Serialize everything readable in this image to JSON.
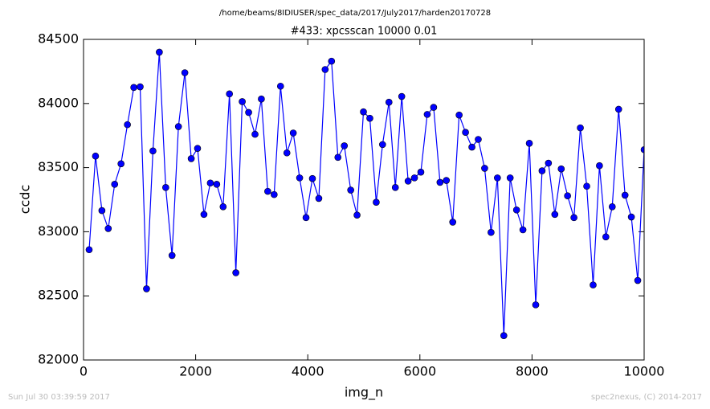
{
  "chart_data": {
    "type": "line",
    "suptitle": "/home/beams/8IDIUSER/spec_data/2017/July2017/harden20170728",
    "title": "#433: xpcsscan 10000 0.01",
    "xlabel": "img_n",
    "ylabel": "ccdc",
    "footer_left": "Sun Jul 30 03:39:59 2017",
    "footer_right": "spec2nexus, (C) 2014-2017",
    "xlim": [
      0,
      10000
    ],
    "xticks": [
      0,
      2000,
      4000,
      6000,
      8000,
      10000
    ],
    "ylim": [
      82000,
      84500
    ],
    "yticks": [
      82000,
      82500,
      83000,
      83500,
      84000,
      84500
    ],
    "grid": false,
    "series": [
      {
        "color": "#0000ff",
        "x": [
          100,
          214,
          328,
          441,
          555,
          669,
          783,
          897,
          1010,
          1124,
          1238,
          1352,
          1466,
          1579,
          1693,
          1807,
          1921,
          2034,
          2148,
          2262,
          2376,
          2490,
          2603,
          2717,
          2831,
          2945,
          3059,
          3172,
          3286,
          3400,
          3514,
          3628,
          3741,
          3855,
          3969,
          4083,
          4197,
          4310,
          4424,
          4538,
          4652,
          4766,
          4879,
          4993,
          5107,
          5221,
          5334,
          5448,
          5562,
          5676,
          5790,
          5903,
          6017,
          6131,
          6245,
          6359,
          6472,
          6586,
          6700,
          6814,
          6928,
          7041,
          7155,
          7269,
          7383,
          7497,
          7610,
          7724,
          7838,
          7952,
          8066,
          8179,
          8293,
          8407,
          8521,
          8634,
          8748,
          8862,
          8976,
          9090,
          9203,
          9317,
          9431,
          9545,
          9659,
          9772,
          9886,
          10000
        ],
        "values": [
          82860,
          83590,
          83165,
          83025,
          83370,
          83530,
          83835,
          84125,
          84130,
          82555,
          83630,
          84400,
          83345,
          82815,
          83820,
          84240,
          83570,
          83650,
          83135,
          83380,
          83370,
          83195,
          84075,
          82680,
          84015,
          83930,
          83760,
          84035,
          83315,
          83290,
          84135,
          83615,
          83770,
          83420,
          83110,
          83415,
          83260,
          84265,
          84330,
          83580,
          83670,
          83325,
          83130,
          83935,
          83885,
          83230,
          83680,
          84010,
          83345,
          84055,
          83395,
          83420,
          83465,
          83915,
          83970,
          83385,
          83400,
          83075,
          83910,
          83775,
          83660,
          83720,
          83495,
          82995,
          83420,
          82190,
          83420,
          83170,
          83015,
          83690,
          82430,
          83475,
          83535,
          83135,
          83490,
          83280,
          83110,
          83810,
          83355,
          82585,
          83515,
          82960,
          83195,
          83955,
          83285,
          83115,
          82620,
          83640
        ]
      }
    ]
  }
}
